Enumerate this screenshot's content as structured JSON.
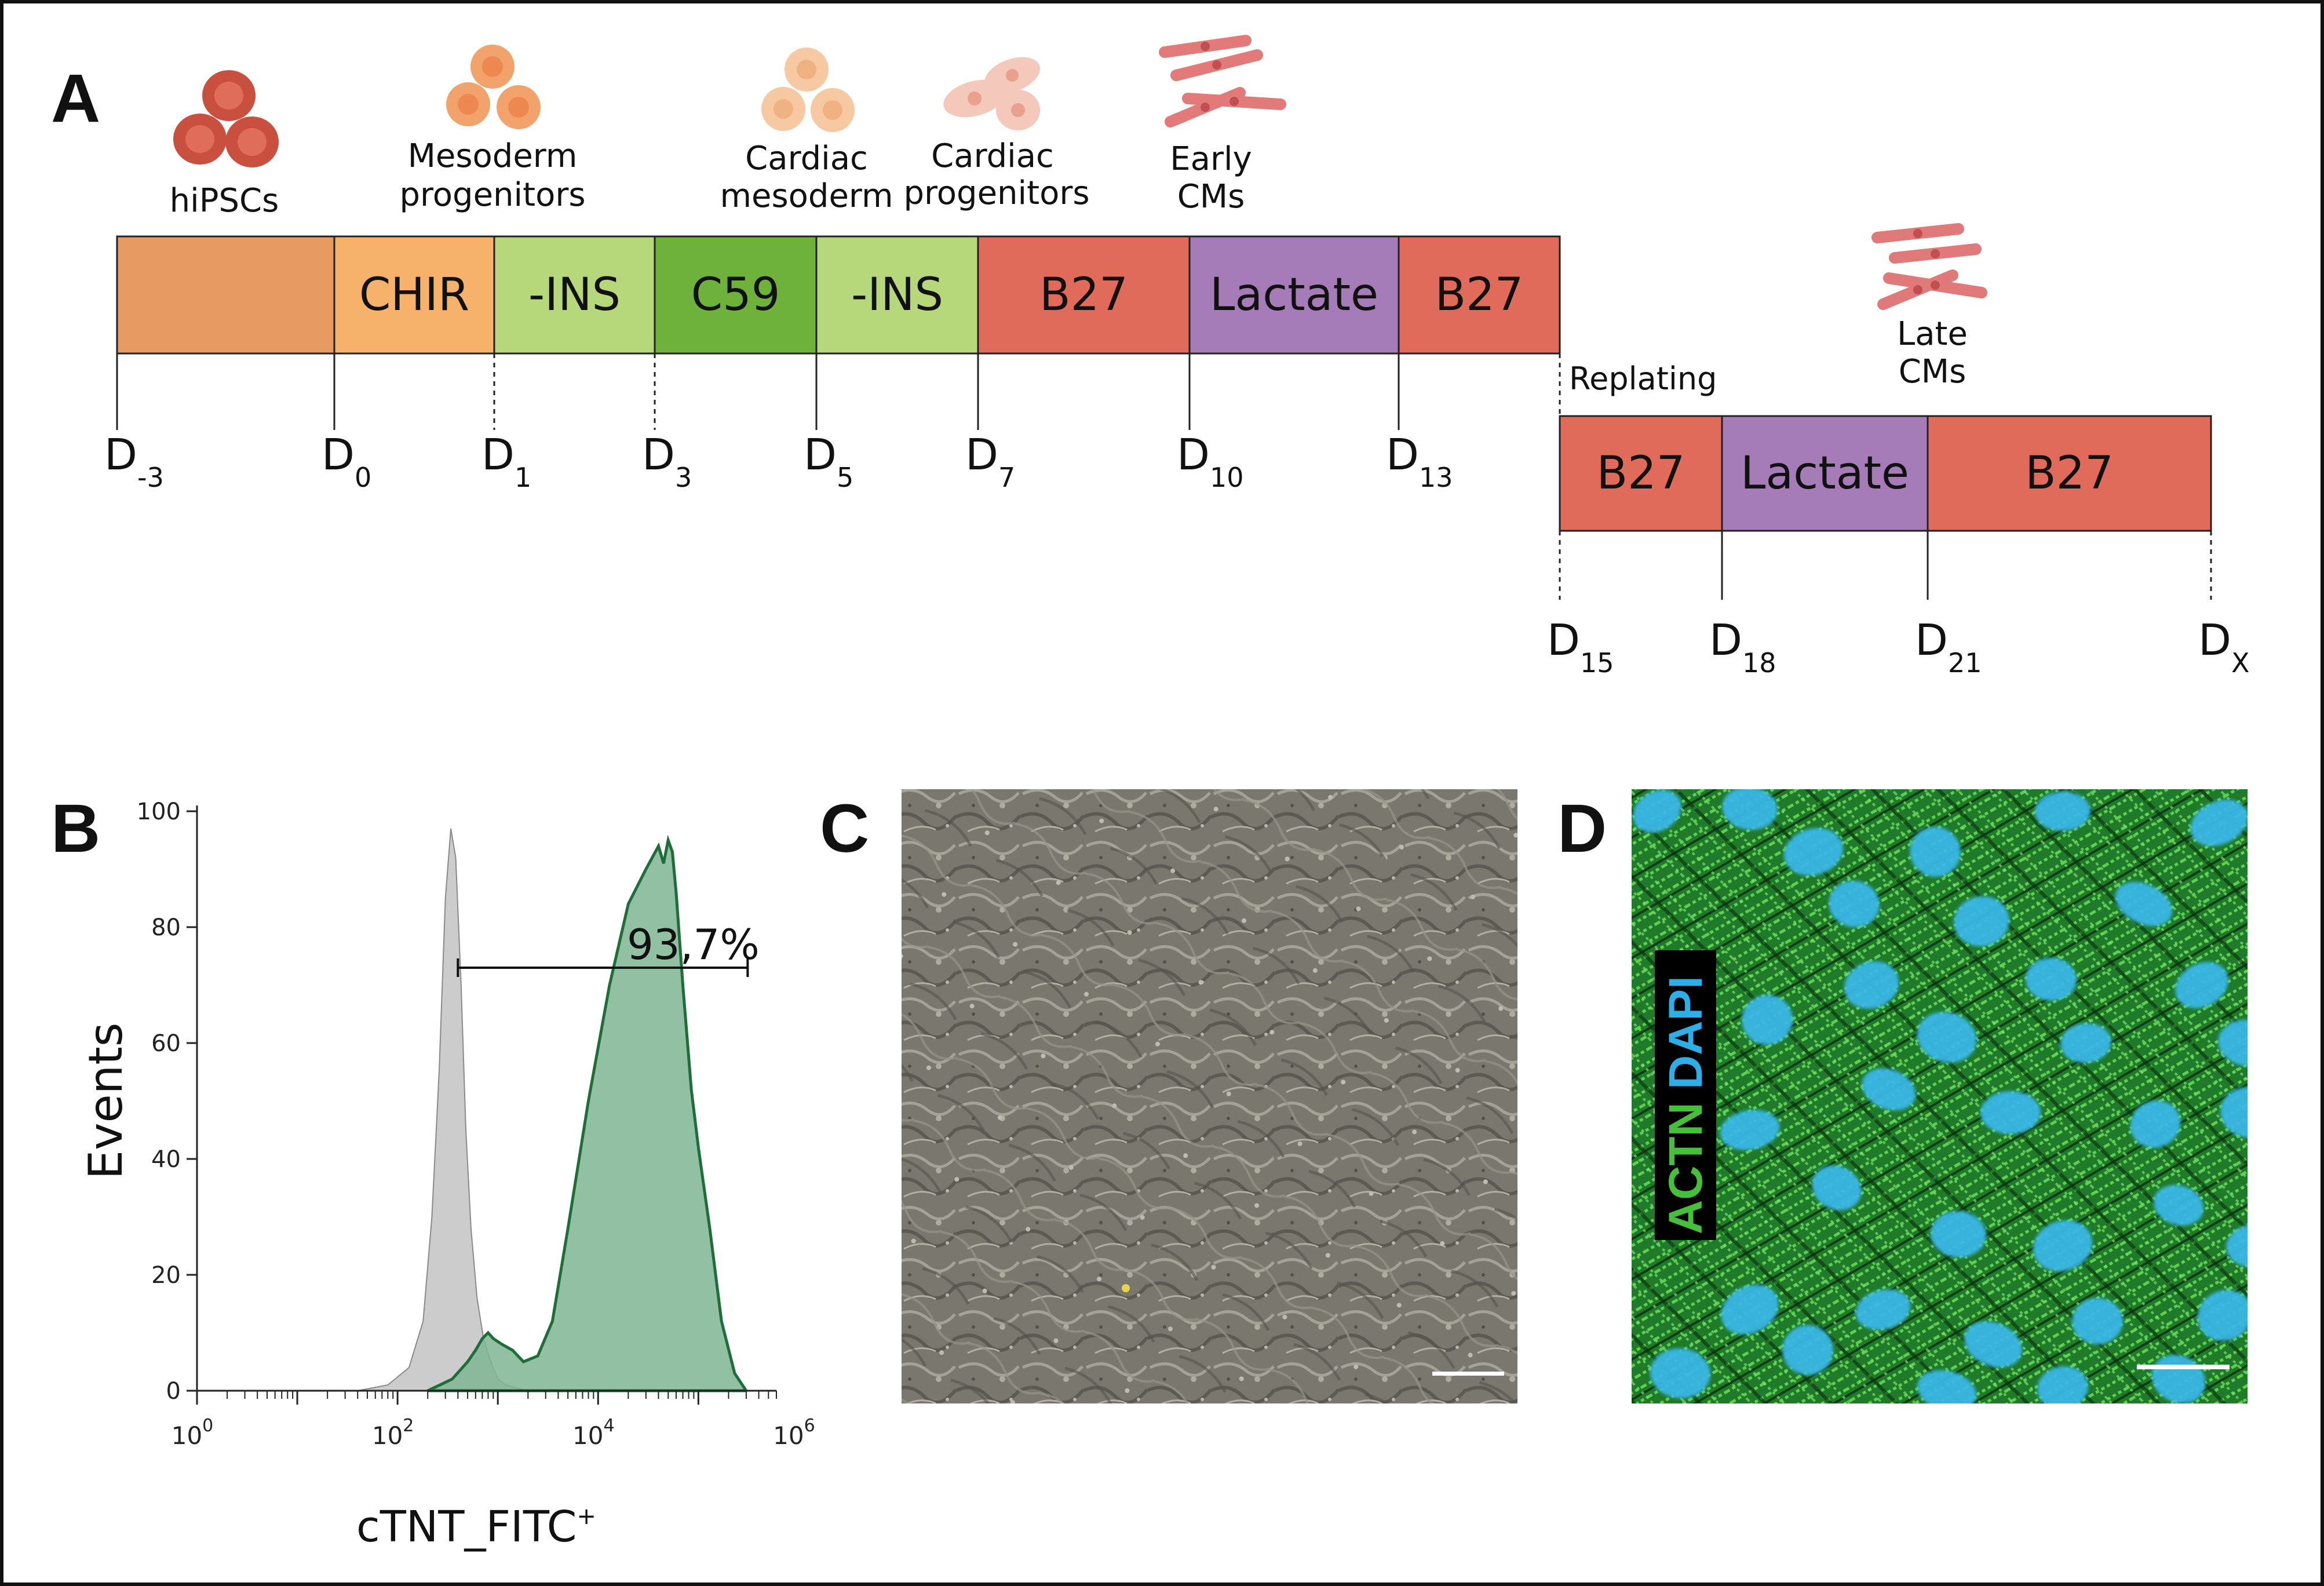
{
  "panels": {
    "a": "A",
    "b": "B",
    "c": "C",
    "d": "D"
  },
  "stages": [
    {
      "line1": "",
      "line2": "hiPSCs"
    },
    {
      "line1": "Mesoderm",
      "line2": "progenitors"
    },
    {
      "line1": "Cardiac",
      "line2": "mesoderm"
    },
    {
      "line1": "Cardiac",
      "line2": "progenitors"
    },
    {
      "line1": "Early",
      "line2": "CMs"
    },
    {
      "line1": "Late",
      "line2": "CMs"
    }
  ],
  "timeline1": {
    "segments": [
      {
        "label": "",
        "color": "#e89a63"
      },
      {
        "label": "CHIR",
        "color": "#f6b26b"
      },
      {
        "label": "-INS",
        "color": "#b6d77a"
      },
      {
        "label": "C59",
        "color": "#6fb23b"
      },
      {
        "label": "-INS",
        "color": "#b6d77a"
      },
      {
        "label": "B27",
        "color": "#e06b5b"
      },
      {
        "label": "Lactate",
        "color": "#a57cb8"
      },
      {
        "label": "B27",
        "color": "#e06b5b"
      }
    ],
    "days": [
      {
        "main": "D",
        "sub": "-3"
      },
      {
        "main": "D",
        "sub": "0"
      },
      {
        "main": "D",
        "sub": "1"
      },
      {
        "main": "D",
        "sub": "3"
      },
      {
        "main": "D",
        "sub": "5"
      },
      {
        "main": "D",
        "sub": "7"
      },
      {
        "main": "D",
        "sub": "10"
      },
      {
        "main": "D",
        "sub": "13"
      }
    ]
  },
  "replating_label": "Replating",
  "timeline2": {
    "segments": [
      {
        "label": "B27",
        "color": "#e06b5b"
      },
      {
        "label": "Lactate",
        "color": "#a57cb8"
      },
      {
        "label": "B27",
        "color": "#e06b5b"
      }
    ],
    "days": [
      {
        "main": "D",
        "sub": "15"
      },
      {
        "main": "D",
        "sub": "18"
      },
      {
        "main": "D",
        "sub": "21"
      },
      {
        "main": "D",
        "sub": "X"
      }
    ]
  },
  "chart_data": {
    "type": "area",
    "xscale": "log",
    "xlim": [
      1,
      600000
    ],
    "ylim": [
      0,
      100
    ],
    "yticks": [
      "0",
      "20",
      "40",
      "60",
      "80",
      "100"
    ],
    "xticks": [
      {
        "base": "10",
        "exp": "0"
      },
      {
        "base": "10",
        "exp": "2"
      },
      {
        "base": "10",
        "exp": "4"
      },
      {
        "base": "10",
        "exp": "6"
      }
    ],
    "ylabel": "Events",
    "xlabel": {
      "main": "cTNT_FITC",
      "sup": "+"
    },
    "gate_label": "93,7%",
    "gate_range": [
      400,
      310000
    ],
    "gate_y": 73,
    "series": [
      {
        "color": "#c6c6c6",
        "stroke": "#8a8a8a",
        "x": [
          40,
          80,
          130,
          180,
          220,
          260,
          300,
          340,
          380,
          430,
          480,
          540,
          620,
          720,
          850,
          1000,
          1200,
          1500,
          2000
        ],
        "y": [
          0,
          1,
          4,
          12,
          30,
          55,
          85,
          97,
          92,
          70,
          45,
          28,
          16,
          9,
          5,
          2,
          1,
          0.5,
          0
        ]
      },
      {
        "color": "#7fb593",
        "stroke": "#1f6e3a",
        "x": [
          200,
          350,
          500,
          600,
          700,
          800,
          900,
          1100,
          1400,
          1800,
          2500,
          3500,
          5000,
          8000,
          13000,
          20000,
          30000,
          40000,
          45000,
          50000,
          55000,
          60000,
          70000,
          85000,
          100000,
          130000,
          170000,
          230000,
          300000
        ],
        "y": [
          0,
          2,
          5,
          7,
          9,
          10,
          9,
          8,
          7,
          5,
          6,
          12,
          28,
          50,
          70,
          84,
          90,
          94,
          91,
          95,
          93,
          86,
          70,
          52,
          42,
          28,
          12,
          3,
          0
        ]
      }
    ]
  },
  "panel_d": {
    "label_green": "ACTN",
    "label_blue": "DAPI"
  }
}
